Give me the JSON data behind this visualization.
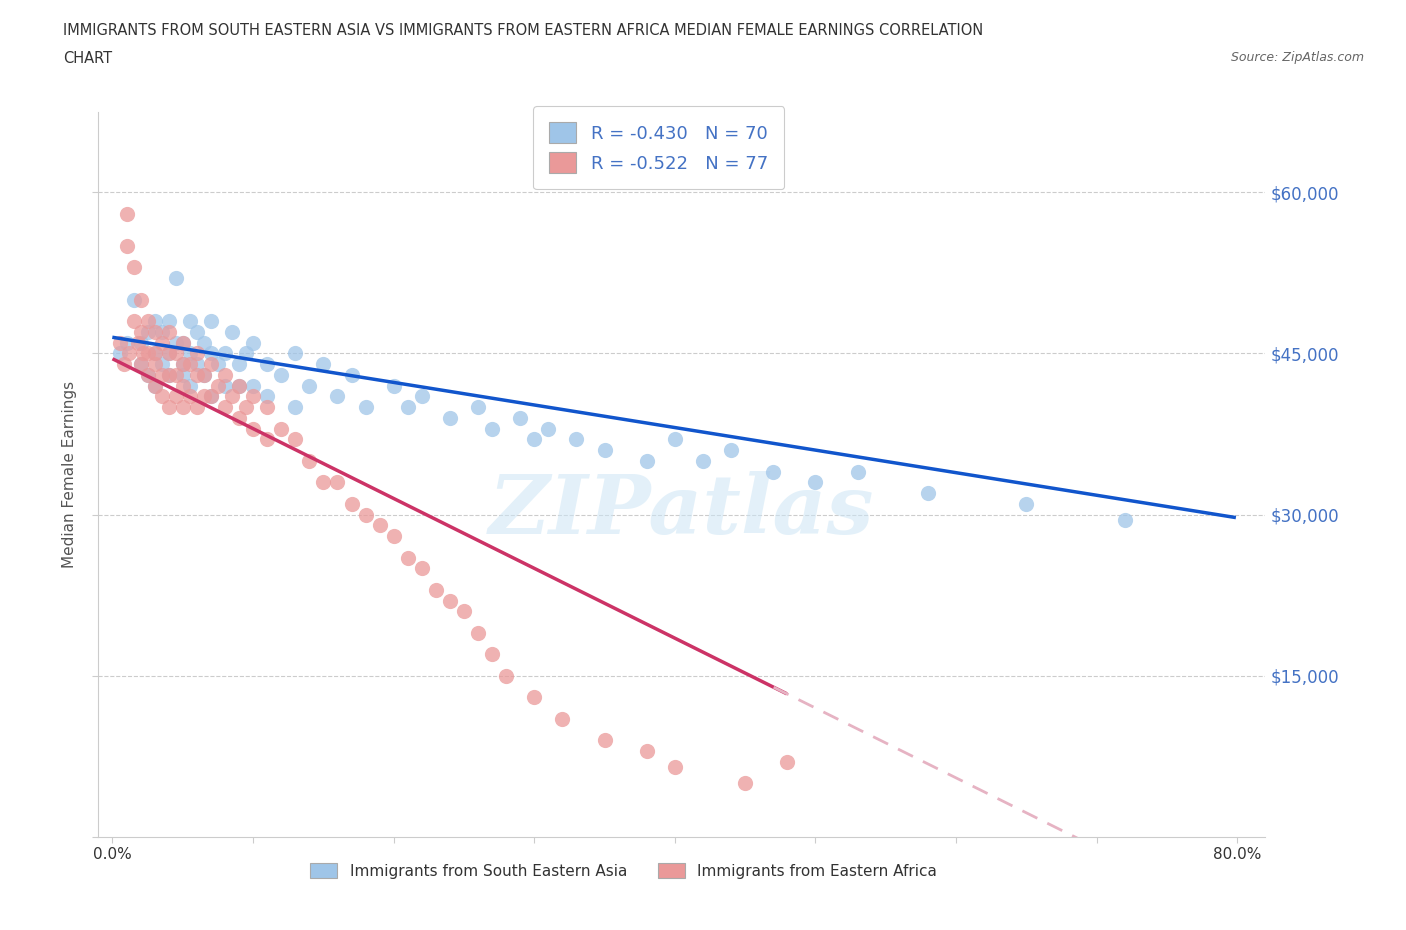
{
  "title_line1": "IMMIGRANTS FROM SOUTH EASTERN ASIA VS IMMIGRANTS FROM EASTERN AFRICA MEDIAN FEMALE EARNINGS CORRELATION",
  "title_line2": "CHART",
  "source": "Source: ZipAtlas.com",
  "ylabel": "Median Female Earnings",
  "xlim": [
    0,
    0.82
  ],
  "ylim": [
    0,
    67500
  ],
  "color_blue": "#9fc5e8",
  "color_pink": "#ea9999",
  "color_blue_line": "#1155cc",
  "color_pink_line": "#cc3366",
  "color_pink_line_dashed": "#e6b3c3",
  "R_blue": -0.43,
  "N_blue": 70,
  "R_pink": -0.522,
  "N_pink": 77,
  "legend_label_blue": "Immigrants from South Eastern Asia",
  "legend_label_pink": "Immigrants from Eastern Africa",
  "watermark": "ZIPatlas",
  "blue_intercept": 46500,
  "blue_slope": -21000,
  "pink_intercept": 44500,
  "pink_slope": -65000,
  "blue_scatter_x": [
    0.005,
    0.01,
    0.015,
    0.02,
    0.02,
    0.025,
    0.025,
    0.03,
    0.03,
    0.03,
    0.035,
    0.035,
    0.04,
    0.04,
    0.04,
    0.045,
    0.045,
    0.05,
    0.05,
    0.05,
    0.055,
    0.055,
    0.055,
    0.06,
    0.06,
    0.065,
    0.065,
    0.07,
    0.07,
    0.07,
    0.075,
    0.08,
    0.08,
    0.085,
    0.09,
    0.09,
    0.095,
    0.1,
    0.1,
    0.11,
    0.11,
    0.12,
    0.13,
    0.13,
    0.14,
    0.15,
    0.16,
    0.17,
    0.18,
    0.2,
    0.21,
    0.22,
    0.24,
    0.26,
    0.27,
    0.29,
    0.3,
    0.31,
    0.33,
    0.35,
    0.38,
    0.4,
    0.42,
    0.44,
    0.47,
    0.5,
    0.53,
    0.58,
    0.65,
    0.72
  ],
  "blue_scatter_y": [
    45000,
    46000,
    50000,
    44000,
    46000,
    47000,
    43000,
    45000,
    48000,
    42000,
    44000,
    47000,
    45000,
    43000,
    48000,
    46000,
    52000,
    44000,
    46000,
    43000,
    45000,
    42000,
    48000,
    47000,
    44000,
    46000,
    43000,
    45000,
    48000,
    41000,
    44000,
    45000,
    42000,
    47000,
    44000,
    42000,
    45000,
    46000,
    42000,
    44000,
    41000,
    43000,
    45000,
    40000,
    42000,
    44000,
    41000,
    43000,
    40000,
    42000,
    40000,
    41000,
    39000,
    40000,
    38000,
    39000,
    37000,
    38000,
    37000,
    36000,
    35000,
    37000,
    35000,
    36000,
    34000,
    33000,
    34000,
    32000,
    31000,
    29500
  ],
  "pink_scatter_x": [
    0.005,
    0.008,
    0.01,
    0.01,
    0.012,
    0.015,
    0.015,
    0.018,
    0.02,
    0.02,
    0.02,
    0.022,
    0.025,
    0.025,
    0.025,
    0.03,
    0.03,
    0.03,
    0.03,
    0.035,
    0.035,
    0.035,
    0.04,
    0.04,
    0.04,
    0.04,
    0.045,
    0.045,
    0.045,
    0.05,
    0.05,
    0.05,
    0.05,
    0.055,
    0.055,
    0.06,
    0.06,
    0.06,
    0.065,
    0.065,
    0.07,
    0.07,
    0.075,
    0.08,
    0.08,
    0.085,
    0.09,
    0.09,
    0.095,
    0.1,
    0.1,
    0.11,
    0.11,
    0.12,
    0.13,
    0.14,
    0.15,
    0.16,
    0.17,
    0.18,
    0.19,
    0.2,
    0.21,
    0.22,
    0.23,
    0.24,
    0.25,
    0.26,
    0.27,
    0.28,
    0.3,
    0.32,
    0.35,
    0.38,
    0.4,
    0.45,
    0.48
  ],
  "pink_scatter_y": [
    46000,
    44000,
    58000,
    55000,
    45000,
    53000,
    48000,
    46000,
    50000,
    47000,
    44000,
    45000,
    48000,
    45000,
    43000,
    47000,
    45000,
    42000,
    44000,
    46000,
    43000,
    41000,
    47000,
    45000,
    43000,
    40000,
    45000,
    43000,
    41000,
    46000,
    44000,
    42000,
    40000,
    44000,
    41000,
    45000,
    43000,
    40000,
    43000,
    41000,
    44000,
    41000,
    42000,
    43000,
    40000,
    41000,
    42000,
    39000,
    40000,
    41000,
    38000,
    40000,
    37000,
    38000,
    37000,
    35000,
    33000,
    33000,
    31000,
    30000,
    29000,
    28000,
    26000,
    25000,
    23000,
    22000,
    21000,
    19000,
    17000,
    15000,
    13000,
    11000,
    9000,
    8000,
    6500,
    5000,
    7000
  ]
}
